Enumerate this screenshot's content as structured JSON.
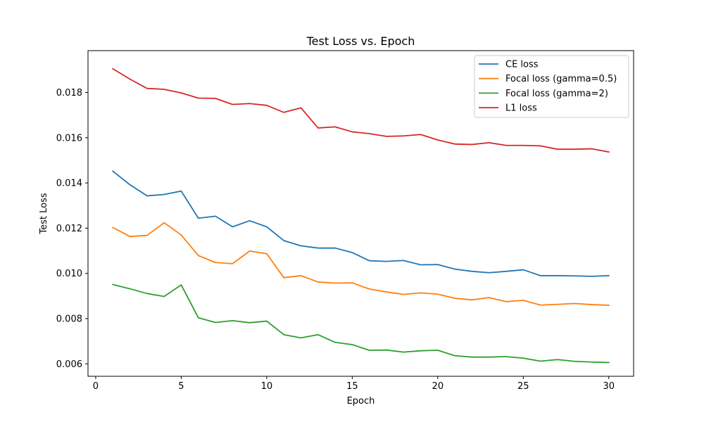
{
  "chart_data": {
    "type": "line",
    "title": "Test Loss vs. Epoch",
    "xlabel": "Epoch",
    "ylabel": "Test Loss",
    "xlim": [
      -0.45,
      31.45
    ],
    "ylim": [
      0.00545,
      0.01985
    ],
    "xticks": [
      0,
      5,
      10,
      15,
      20,
      25,
      30
    ],
    "xtick_labels": [
      "0",
      "5",
      "10",
      "15",
      "20",
      "25",
      "30"
    ],
    "yticks": [
      0.006,
      0.008,
      0.01,
      0.012,
      0.014,
      0.016,
      0.018
    ],
    "ytick_labels": [
      "0.006",
      "0.008",
      "0.010",
      "0.012",
      "0.014",
      "0.016",
      "0.018"
    ],
    "grid": false,
    "legend_position": "top-right",
    "x": [
      1,
      2,
      3,
      4,
      5,
      6,
      7,
      8,
      9,
      10,
      11,
      12,
      13,
      14,
      15,
      16,
      17,
      18,
      19,
      20,
      21,
      22,
      23,
      24,
      25,
      26,
      27,
      28,
      29,
      30
    ],
    "series": [
      {
        "name": "CE loss",
        "color": "#1f77b4",
        "values": [
          0.01452,
          0.01392,
          0.01343,
          0.01349,
          0.01364,
          0.01244,
          0.01253,
          0.01206,
          0.01233,
          0.01206,
          0.01145,
          0.01122,
          0.01112,
          0.01112,
          0.01092,
          0.01056,
          0.01053,
          0.01057,
          0.01038,
          0.01039,
          0.01019,
          0.01009,
          0.01003,
          0.01009,
          0.01016,
          0.0099,
          0.0099,
          0.00989,
          0.00987,
          0.0099
        ]
      },
      {
        "name": "Focal loss (gamma=0.5)",
        "color": "#ff7f0e",
        "values": [
          0.01203,
          0.01163,
          0.01168,
          0.01224,
          0.0117,
          0.01079,
          0.01048,
          0.01043,
          0.01099,
          0.01087,
          0.00981,
          0.0099,
          0.00962,
          0.00957,
          0.00958,
          0.00931,
          0.00918,
          0.00907,
          0.00914,
          0.00908,
          0.0089,
          0.00883,
          0.00893,
          0.00875,
          0.00881,
          0.0086,
          0.00863,
          0.00867,
          0.00862,
          0.00859
        ]
      },
      {
        "name": "Focal loss (gamma=2)",
        "color": "#2ca02c",
        "values": [
          0.00951,
          0.00932,
          0.00911,
          0.00898,
          0.00949,
          0.00804,
          0.00783,
          0.00791,
          0.00782,
          0.00789,
          0.00729,
          0.00715,
          0.00729,
          0.00695,
          0.00685,
          0.0066,
          0.00661,
          0.00652,
          0.00658,
          0.0066,
          0.00636,
          0.0063,
          0.0063,
          0.00632,
          0.00625,
          0.00612,
          0.00619,
          0.00611,
          0.00608,
          0.00606
        ]
      },
      {
        "name": "L1 loss",
        "color": "#d62728",
        "values": [
          0.01905,
          0.01859,
          0.01818,
          0.01814,
          0.01798,
          0.01775,
          0.01774,
          0.01747,
          0.01751,
          0.01743,
          0.01712,
          0.01732,
          0.01643,
          0.01648,
          0.01626,
          0.01618,
          0.01606,
          0.01608,
          0.01614,
          0.0159,
          0.01572,
          0.0157,
          0.01578,
          0.01566,
          0.01566,
          0.01564,
          0.01549,
          0.01549,
          0.01551,
          0.01537
        ]
      }
    ]
  }
}
